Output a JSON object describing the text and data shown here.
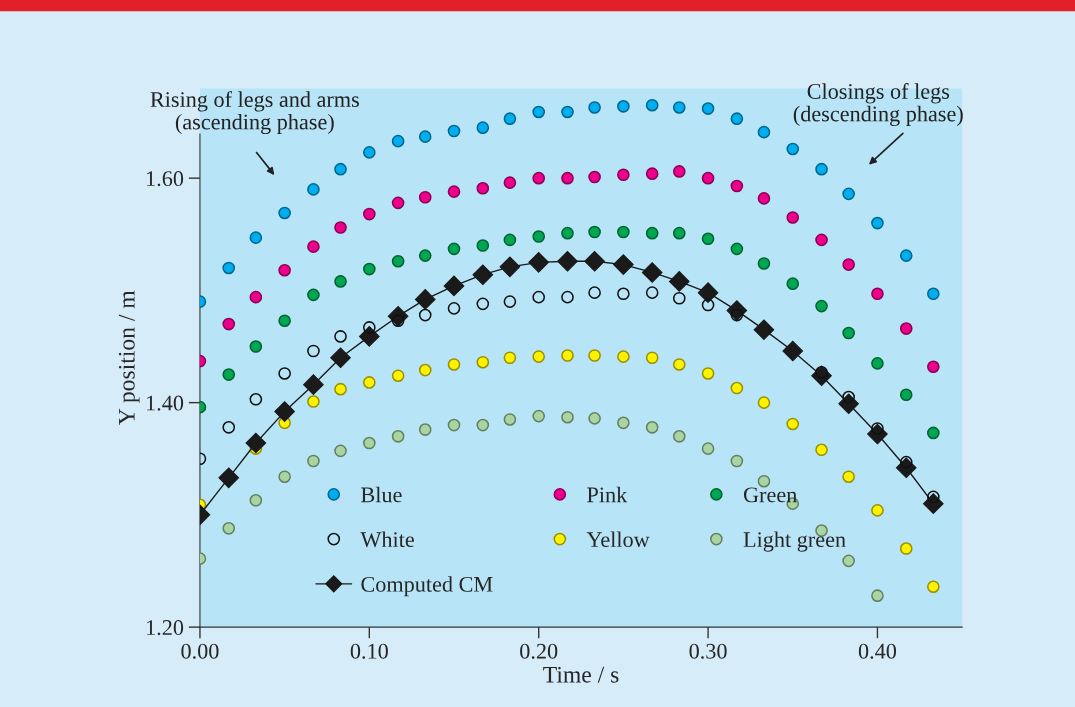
{
  "chart_data": {
    "type": "scatter",
    "xlabel": "Time / s",
    "ylabel": "Y position / m",
    "x": [
      0,
      0.017,
      0.033,
      0.05,
      0.067,
      0.083,
      0.1,
      0.117,
      0.133,
      0.15,
      0.167,
      0.183,
      0.2,
      0.217,
      0.233,
      0.25,
      0.267,
      0.283,
      0.3,
      0.317,
      0.333,
      0.35,
      0.367,
      0.383,
      0.4,
      0.417,
      0.433
    ],
    "series": [
      {
        "name": "Blue",
        "color": "#00aeef",
        "marker": "circle",
        "values": [
          1.49,
          1.52,
          1.547,
          1.569,
          1.59,
          1.608,
          1.623,
          1.633,
          1.637,
          1.642,
          1.645,
          1.653,
          1.659,
          1.659,
          1.663,
          1.664,
          1.665,
          1.663,
          1.662,
          1.653,
          1.641,
          1.626,
          1.608,
          1.586,
          1.56,
          1.531,
          1.497
        ]
      },
      {
        "name": "Pink",
        "color": "#ec008c",
        "marker": "circle",
        "values": [
          1.437,
          1.47,
          1.494,
          1.518,
          1.539,
          1.556,
          1.568,
          1.578,
          1.583,
          1.588,
          1.591,
          1.596,
          1.6,
          1.6,
          1.601,
          1.603,
          1.604,
          1.606,
          1.6,
          1.593,
          1.582,
          1.565,
          1.545,
          1.523,
          1.497,
          1.466,
          1.432
        ]
      },
      {
        "name": "Green",
        "color": "#00a651",
        "marker": "circle",
        "values": [
          1.396,
          1.425,
          1.45,
          1.473,
          1.496,
          1.508,
          1.519,
          1.526,
          1.531,
          1.537,
          1.54,
          1.545,
          1.548,
          1.551,
          1.552,
          1.552,
          1.551,
          1.551,
          1.546,
          1.537,
          1.524,
          1.506,
          1.486,
          1.462,
          1.435,
          1.407,
          1.373
        ]
      },
      {
        "name": "White",
        "color": "#111111",
        "marker": "circle",
        "values": [
          1.35,
          1.378,
          1.403,
          1.426,
          1.446,
          1.459,
          1.467,
          1.473,
          1.478,
          1.484,
          1.488,
          1.49,
          1.494,
          1.494,
          1.498,
          1.497,
          1.498,
          1.493,
          1.487,
          1.478,
          null,
          null,
          1.427,
          1.405,
          1.377,
          1.347,
          1.316
        ]
      },
      {
        "name": "Yellow",
        "color": "#fff200",
        "marker": "circle",
        "values": [
          1.309,
          null,
          1.359,
          1.382,
          1.401,
          1.412,
          1.418,
          1.424,
          1.429,
          1.434,
          1.436,
          1.44,
          1.441,
          1.442,
          1.442,
          1.441,
          1.44,
          1.434,
          1.426,
          1.413,
          1.4,
          1.381,
          1.358,
          1.334,
          1.304,
          1.27,
          1.236
        ]
      },
      {
        "name": "Light green",
        "color": "#a8d5a2",
        "marker": "circle",
        "values": [
          1.261,
          1.288,
          1.313,
          1.334,
          1.348,
          1.357,
          1.364,
          1.37,
          1.376,
          1.38,
          1.38,
          1.385,
          1.388,
          1.387,
          1.386,
          1.382,
          1.378,
          1.37,
          1.359,
          1.348,
          1.33,
          1.31,
          1.286,
          1.259,
          1.228,
          null,
          null
        ]
      },
      {
        "name": "Computed CM",
        "type": "line",
        "color": "#1a1a1a",
        "marker": "diamond",
        "line_style": "solid",
        "values": [
          1.3,
          1.333,
          1.364,
          1.392,
          1.416,
          1.44,
          1.459,
          1.477,
          1.492,
          1.504,
          1.514,
          1.521,
          1.525,
          1.526,
          1.526,
          1.523,
          1.516,
          1.508,
          1.498,
          1.482,
          1.465,
          1.446,
          1.424,
          1.399,
          1.372,
          1.342,
          1.31
        ]
      }
    ],
    "xlim": [
      0,
      0.45
    ],
    "xticks": [
      {
        "value": 0,
        "label": "0.00"
      },
      {
        "value": 0.1,
        "label": "0.10"
      },
      {
        "value": 0.2,
        "label": "0.20"
      },
      {
        "value": 0.3,
        "label": "0.30"
      },
      {
        "value": 0.4,
        "label": "0.40"
      }
    ],
    "ylim": [
      1.2,
      1.68
    ],
    "yticks": [
      {
        "value": 1.2,
        "label": "1.20"
      },
      {
        "value": 1.4,
        "label": "1.40"
      },
      {
        "value": 1.6,
        "label": "1.60"
      }
    ],
    "grid": false,
    "legend": "bottom",
    "annotations": [
      "Rising of legs and arms\n(ascending phase)",
      "Closings of legs\n(descending phase)"
    ]
  }
}
